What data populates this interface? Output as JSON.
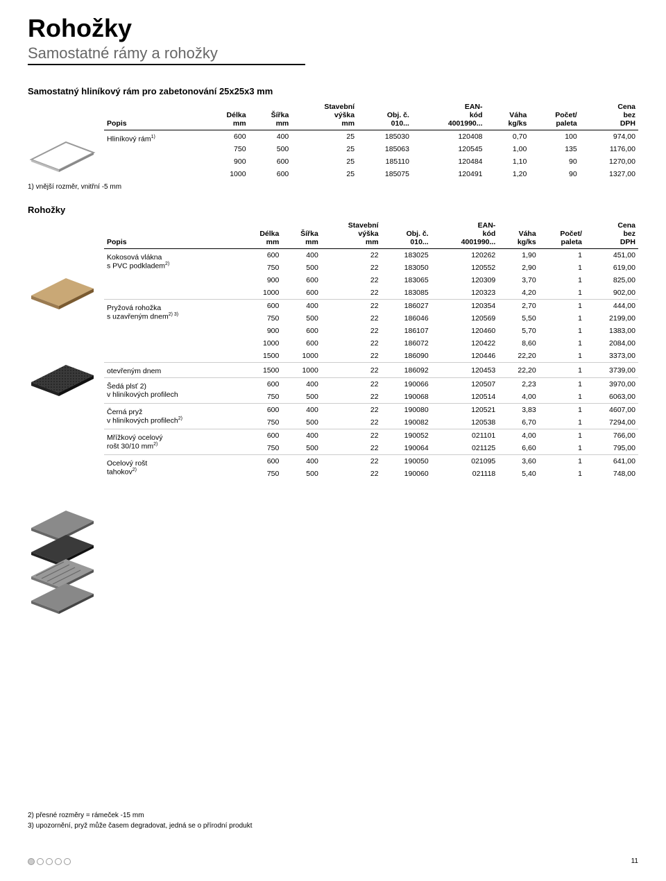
{
  "header": {
    "title": "Rohožky",
    "subtitle": "Samostatné rámy a rohožky"
  },
  "table1_title": "Samostatný hliníkový rám pro zabetonování 25x25x3 mm",
  "columns": {
    "popis": "Popis",
    "delka": "Délka\nmm",
    "sirka": "Šířka\nmm",
    "vyska": "Stavební\nvýška\nmm",
    "obj": "Obj. č.\n010...",
    "ean": "EAN-\nkód\n4001990...",
    "vaha": "Váha\nkg/ks",
    "pocet": "Počet/\npaleta",
    "cena": "Cena\nbez\nDPH"
  },
  "table1": {
    "desc": "Hliníkový rám",
    "desc_sup": "1)",
    "rows": [
      [
        "600",
        "400",
        "25",
        "185030",
        "120408",
        "0,70",
        "100",
        "974,00"
      ],
      [
        "750",
        "500",
        "25",
        "185063",
        "120545",
        "1,00",
        "135",
        "1176,00"
      ],
      [
        "900",
        "600",
        "25",
        "185110",
        "120484",
        "1,10",
        "90",
        "1270,00"
      ],
      [
        "1000",
        "600",
        "25",
        "185075",
        "120491",
        "1,20",
        "90",
        "1327,00"
      ]
    ]
  },
  "foot1": "1) vnější rozměr, vnitřní -5 mm",
  "table2_title": "Rohožky",
  "groups": [
    {
      "desc": "Kokosová vlákna\ns PVC podkladem",
      "desc_sup": "2)",
      "rows": [
        [
          "600",
          "400",
          "22",
          "183025",
          "120262",
          "1,90",
          "1",
          "451,00"
        ],
        [
          "750",
          "500",
          "22",
          "183050",
          "120552",
          "2,90",
          "1",
          "619,00"
        ],
        [
          "900",
          "600",
          "22",
          "183065",
          "120309",
          "3,70",
          "1",
          "825,00"
        ],
        [
          "1000",
          "600",
          "22",
          "183085",
          "120323",
          "4,20",
          "1",
          "902,00"
        ]
      ]
    },
    {
      "desc": "Pryžová rohožka\ns uzavřeným dnem",
      "desc_sup": "2) 3)",
      "rows": [
        [
          "600",
          "400",
          "22",
          "186027",
          "120354",
          "2,70",
          "1",
          "444,00"
        ],
        [
          "750",
          "500",
          "22",
          "186046",
          "120569",
          "5,50",
          "1",
          "2199,00"
        ],
        [
          "900",
          "600",
          "22",
          "186107",
          "120460",
          "5,70",
          "1",
          "1383,00"
        ],
        [
          "1000",
          "600",
          "22",
          "186072",
          "120422",
          "8,60",
          "1",
          "2084,00"
        ],
        [
          "1500",
          "1000",
          "22",
          "186090",
          "120446",
          "22,20",
          "1",
          "3373,00"
        ]
      ]
    },
    {
      "desc": "otevřeným dnem",
      "desc_sup": "",
      "rows": [
        [
          "1500",
          "1000",
          "22",
          "186092",
          "120453",
          "22,20",
          "1",
          "3739,00"
        ]
      ]
    },
    {
      "desc": "Šedá plsť 2)\nv hliníkových profilech",
      "desc_sup": "",
      "rows": [
        [
          "600",
          "400",
          "22",
          "190066",
          "120507",
          "2,23",
          "1",
          "3970,00"
        ],
        [
          "750",
          "500",
          "22",
          "190068",
          "120514",
          "4,00",
          "1",
          "6063,00"
        ]
      ]
    },
    {
      "desc": "Černá pryž\nv hliníkových profilech",
      "desc_sup": "2)",
      "rows": [
        [
          "600",
          "400",
          "22",
          "190080",
          "120521",
          "3,83",
          "1",
          "4607,00"
        ],
        [
          "750",
          "500",
          "22",
          "190082",
          "120538",
          "6,70",
          "1",
          "7294,00"
        ]
      ]
    },
    {
      "desc": "Mřížkový ocelový\nrošt 30/10 mm",
      "desc_sup": "2)",
      "rows": [
        [
          "600",
          "400",
          "22",
          "190052",
          "021101",
          "4,00",
          "1",
          "766,00"
        ],
        [
          "750",
          "500",
          "22",
          "190064",
          "021125",
          "6,60",
          "1",
          "795,00"
        ]
      ]
    },
    {
      "desc": "Ocelový rošt\ntahokov",
      "desc_sup": "2)",
      "rows": [
        [
          "600",
          "400",
          "22",
          "190050",
          "021095",
          "3,60",
          "1",
          "641,00"
        ],
        [
          "750",
          "500",
          "22",
          "190060",
          "021118",
          "5,40",
          "1",
          "748,00"
        ]
      ]
    }
  ],
  "foot2a": "2) přesné rozměry = rámeček -15 mm",
  "foot2b": "3) upozornění, pryž může časem degradovat, jedná se o přírodní produkt",
  "page_num": "11",
  "colors": {
    "text": "#000000",
    "subtitle": "#666666",
    "grid": "#cccccc",
    "mat_tan": "#c9a876",
    "mat_dark": "#3a3a3a",
    "mat_gray": "#8a8a8a",
    "frame": "#aaaaaa"
  }
}
